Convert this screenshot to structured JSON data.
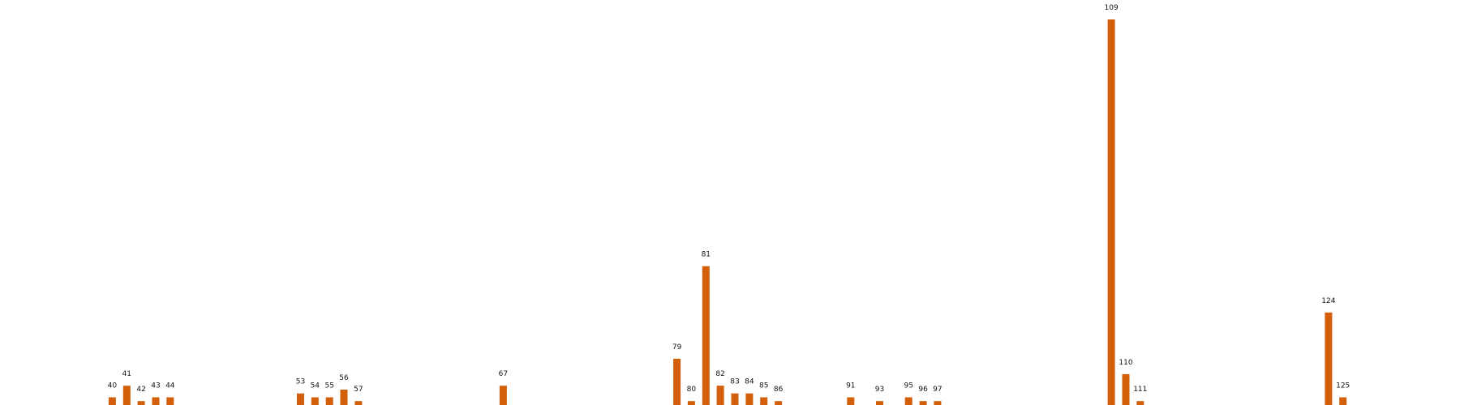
{
  "chart_data": {
    "type": "bar",
    "title": "",
    "xlabel": "",
    "ylabel": "",
    "x_range": [
      36,
      130
    ],
    "ylim": [
      0,
      100
    ],
    "grid": false,
    "legend": "none",
    "bar_color": "#d35f0a",
    "x": [
      40,
      41,
      42,
      43,
      44,
      53,
      54,
      55,
      56,
      57,
      67,
      79,
      80,
      81,
      82,
      83,
      84,
      85,
      86,
      91,
      93,
      95,
      96,
      97,
      109,
      110,
      111,
      124,
      125
    ],
    "values": [
      2,
      5,
      1,
      2,
      2,
      3,
      2,
      2,
      4,
      1,
      5,
      12,
      1,
      36,
      5,
      3,
      3,
      2,
      1,
      2,
      1,
      2,
      1,
      1,
      100,
      8,
      1,
      24,
      2
    ],
    "labels": [
      "40",
      "41",
      "42",
      "43",
      "44",
      "53",
      "54",
      "55",
      "56",
      "57",
      "67",
      "79",
      "80",
      "81",
      "82",
      "83",
      "84",
      "85",
      "86",
      "91",
      "93",
      "95",
      "96",
      "97",
      "109",
      "110",
      "111",
      "124",
      "125"
    ]
  }
}
